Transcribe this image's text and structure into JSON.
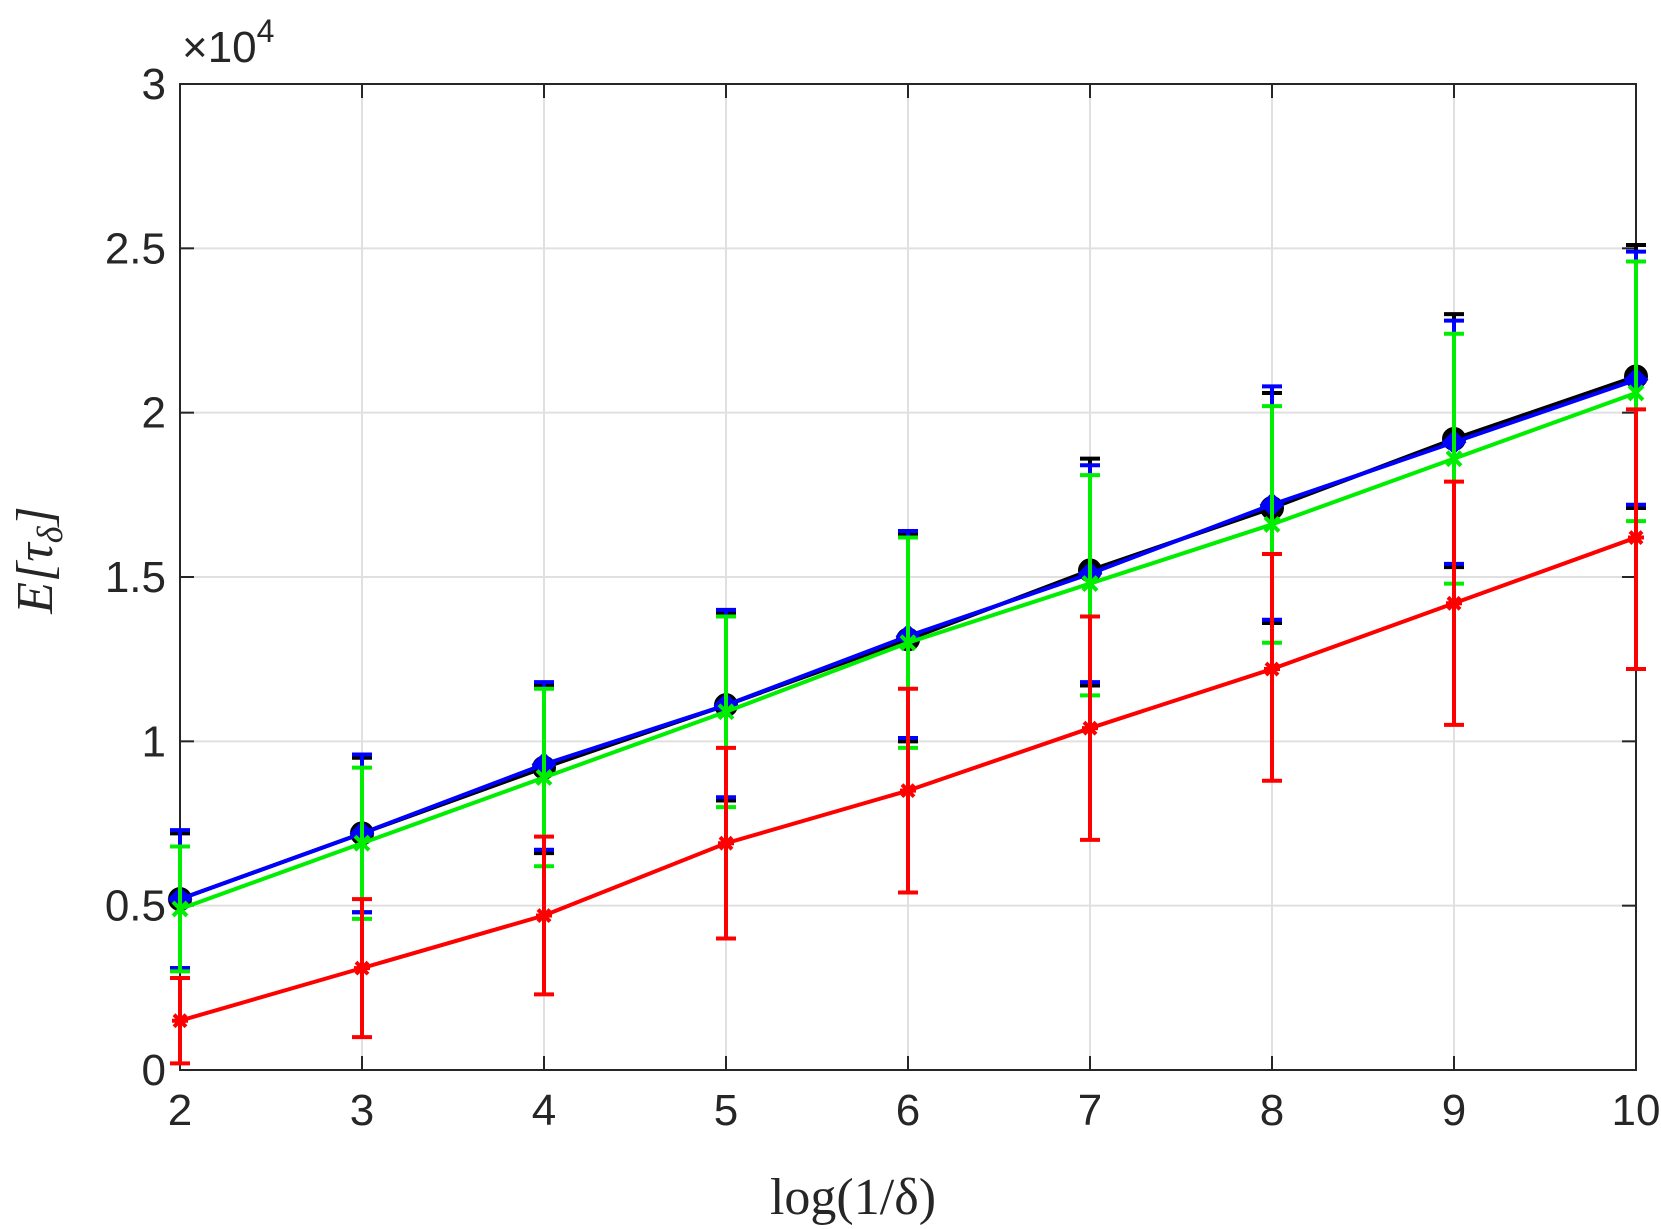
{
  "chart_data": {
    "type": "line",
    "title": "",
    "xlabel": "log(1/δ)",
    "ylabel": "E[τ_δ]",
    "ylabel_main": "E[τ",
    "ylabel_sub": "δ",
    "ylabel_close": "]",
    "y_multiplier": {
      "base": "×10",
      "exponent": "4"
    },
    "xlim": [
      2,
      10
    ],
    "ylim": [
      0,
      3
    ],
    "grid": true,
    "x": [
      2,
      3,
      4,
      5,
      6,
      7,
      8,
      9,
      10
    ],
    "x_tick_labels": [
      "2",
      "3",
      "4",
      "5",
      "6",
      "7",
      "8",
      "9",
      "10"
    ],
    "y_ticks": [
      0,
      0.5,
      1,
      1.5,
      2,
      2.5,
      3
    ],
    "y_tick_labels": [
      "0",
      "0.5",
      "1",
      "1.5",
      "2",
      "2.5",
      "3"
    ],
    "series": [
      {
        "name": "black",
        "color": "#000000",
        "marker": "circle",
        "values": [
          0.52,
          0.72,
          0.92,
          1.11,
          1.31,
          1.52,
          1.71,
          1.92,
          2.11
        ],
        "lower": [
          0.31,
          0.48,
          0.66,
          0.82,
          1.0,
          1.17,
          1.36,
          1.53,
          1.71
        ],
        "upper": [
          0.72,
          0.95,
          1.17,
          1.39,
          1.63,
          1.86,
          2.06,
          2.3,
          2.51
        ]
      },
      {
        "name": "blue",
        "color": "#0000ff",
        "marker": "diamond",
        "values": [
          0.52,
          0.72,
          0.93,
          1.11,
          1.32,
          1.51,
          1.72,
          1.91,
          2.1
        ],
        "lower": [
          0.31,
          0.48,
          0.67,
          0.83,
          1.01,
          1.18,
          1.37,
          1.54,
          1.72
        ],
        "upper": [
          0.73,
          0.96,
          1.18,
          1.4,
          1.64,
          1.84,
          2.08,
          2.28,
          2.49
        ]
      },
      {
        "name": "green",
        "color": "#00ee00",
        "marker": "x",
        "values": [
          0.49,
          0.69,
          0.89,
          1.09,
          1.3,
          1.48,
          1.66,
          1.86,
          2.06
        ],
        "lower": [
          0.3,
          0.46,
          0.62,
          0.8,
          0.98,
          1.14,
          1.3,
          1.48,
          1.67
        ],
        "upper": [
          0.68,
          0.92,
          1.16,
          1.38,
          1.62,
          1.81,
          2.02,
          2.24,
          2.46
        ]
      },
      {
        "name": "red",
        "color": "#ff0000",
        "marker": "star",
        "values": [
          0.15,
          0.31,
          0.47,
          0.69,
          0.85,
          1.04,
          1.22,
          1.42,
          1.62
        ],
        "lower": [
          0.02,
          0.1,
          0.23,
          0.4,
          0.54,
          0.7,
          0.88,
          1.05,
          1.22
        ],
        "upper": [
          0.28,
          0.52,
          0.71,
          0.98,
          1.16,
          1.38,
          1.57,
          1.79,
          2.01
        ]
      }
    ]
  }
}
